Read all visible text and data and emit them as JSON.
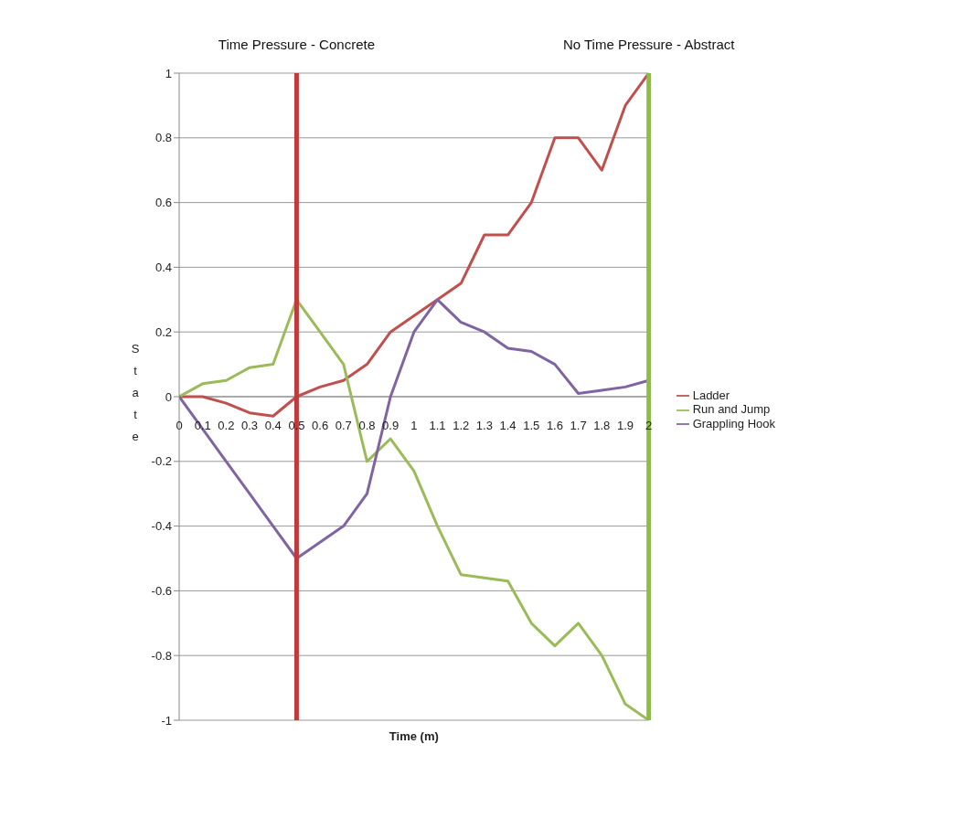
{
  "chart_data": {
    "type": "line",
    "xlabel": "Time (m)",
    "ylabel": "State",
    "x": [
      0,
      0.1,
      0.2,
      0.3,
      0.4,
      0.5,
      0.6,
      0.7,
      0.8,
      0.9,
      1,
      1.1,
      1.2,
      1.3,
      1.4,
      1.5,
      1.6,
      1.7,
      1.8,
      1.9,
      2
    ],
    "xlim": [
      0,
      2
    ],
    "xticks": [
      0,
      0.1,
      0.2,
      0.3,
      0.4,
      0.5,
      0.6,
      0.7,
      0.8,
      0.9,
      1,
      1.1,
      1.2,
      1.3,
      1.4,
      1.5,
      1.6,
      1.7,
      1.8,
      1.9,
      2
    ],
    "ylim": [
      -1,
      1
    ],
    "yticks": [
      -1,
      -0.8,
      -0.6,
      -0.4,
      -0.2,
      0,
      0.2,
      0.4,
      0.6,
      0.8,
      1
    ],
    "series": [
      {
        "name": "Ladder",
        "color": "#c0504d",
        "values": [
          0,
          0,
          -0.02,
          -0.05,
          -0.06,
          0,
          0.03,
          0.05,
          0.1,
          0.2,
          0.25,
          0.3,
          0.35,
          0.5,
          0.5,
          0.6,
          0.8,
          0.8,
          0.7,
          0.9,
          1
        ]
      },
      {
        "name": "Run and Jump",
        "color": "#9bbb59",
        "values": [
          0,
          0.04,
          0.05,
          0.09,
          0.1,
          0.3,
          0.2,
          0.1,
          -0.2,
          -0.13,
          -0.23,
          -0.4,
          -0.55,
          -0.56,
          -0.57,
          -0.7,
          -0.77,
          -0.7,
          -0.8,
          -0.95,
          -1
        ]
      },
      {
        "name": "Grappling Hook",
        "color": "#8064a2",
        "values": [
          0,
          -0.1,
          -0.2,
          -0.3,
          -0.4,
          -0.5,
          -0.45,
          -0.4,
          -0.3,
          0,
          0.2,
          0.3,
          0.23,
          0.2,
          0.15,
          0.14,
          0.1,
          0.01,
          0.02,
          0.03,
          0.05
        ]
      }
    ],
    "ref_lines": [
      {
        "axis": "x",
        "value": 0.5,
        "label": "Time Pressure - Concrete",
        "color": "#c0393b"
      },
      {
        "axis": "x",
        "value": 2,
        "label": "No Time Pressure - Abstract",
        "color": "#8cbf3f"
      }
    ],
    "grid": "y",
    "legend": "right",
    "marker": "none",
    "line_style": "solid"
  }
}
